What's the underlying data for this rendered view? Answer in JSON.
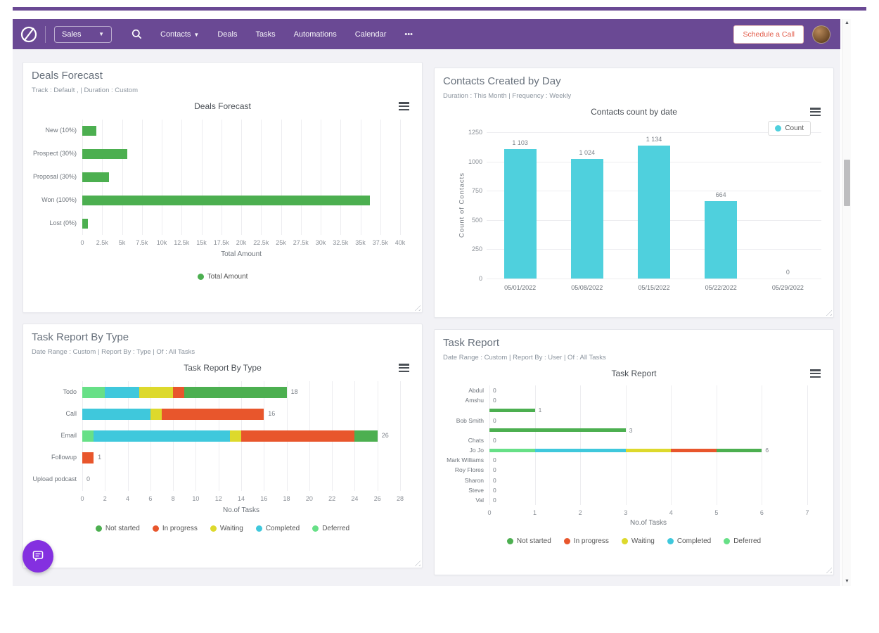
{
  "header": {
    "app_menu": "Sales",
    "nav_items": [
      "Contacts",
      "Deals",
      "Tasks",
      "Automations",
      "Calendar",
      "•••"
    ],
    "schedule_button": "Schedule a Call"
  },
  "colors": {
    "navbar": "#6a4994",
    "accent_button_text": "#e25c4a",
    "chat_fab": "#8430e0",
    "not_started": "#4caf50",
    "in_progress": "#e8562c",
    "waiting": "#ddd92c",
    "completed": "#3fc8dc",
    "deferred": "#67e087",
    "contacts_bar": "#4fd0dd"
  },
  "panels": [
    {
      "title": "Deals Forecast",
      "subtitle": "Track : Default , | Duration : Custom",
      "chart_title": "Deals Forecast"
    },
    {
      "title": "Contacts Created by Day",
      "subtitle": "Duration : This Month | Frequency : Weekly",
      "chart_title": "Contacts count by date"
    },
    {
      "title": "Task Report By Type",
      "subtitle": "Date Range : Custom | Report By : Type | Of : All Tasks",
      "chart_title": "Task Report By Type"
    },
    {
      "title": "Task Report",
      "subtitle": "Date Range : Custom | Report By : User | Of : All Tasks",
      "chart_title": "Task Report"
    }
  ],
  "chart_data": [
    {
      "type": "bar",
      "orientation": "horizontal",
      "title": "Deals Forecast",
      "categories": [
        "New (10%)",
        "Prospect (30%)",
        "Proposal (30%)",
        "Won (100%)",
        "Lost (0%)"
      ],
      "values": [
        1800,
        5700,
        3400,
        36200,
        700
      ],
      "xlabel": "Total Amount",
      "xlim": [
        0,
        40000
      ],
      "xtick_step": 2500,
      "xtick_labels": [
        "0",
        "2.5k",
        "5k",
        "7.5k",
        "10k",
        "12.5k",
        "15k",
        "17.5k",
        "20k",
        "22.5k",
        "25k",
        "27.5k",
        "30k",
        "32.5k",
        "35k",
        "37.5k",
        "40k"
      ],
      "bar_color": "#4caf50",
      "legend": [
        {
          "label": "Total Amount",
          "color": "#4caf50"
        }
      ]
    },
    {
      "type": "bar",
      "orientation": "vertical",
      "title": "Contacts count by date",
      "categories": [
        "05/01/2022",
        "05/08/2022",
        "05/15/2022",
        "05/22/2022",
        "05/29/2022"
      ],
      "values": [
        1103,
        1024,
        1134,
        664,
        0
      ],
      "value_labels": [
        "1 103",
        "1 024",
        "1 134",
        "664",
        "0"
      ],
      "ylabel": "Count of Contacts",
      "ylim": [
        0,
        1250
      ],
      "ytick_step": 250,
      "bar_color": "#4fd0dd",
      "legend": [
        {
          "label": "Count",
          "color": "#4fd0dd"
        }
      ]
    },
    {
      "type": "bar",
      "orientation": "horizontal",
      "stacked": true,
      "title": "Task Report By Type",
      "categories": [
        "Todo",
        "Call",
        "Email",
        "Followup",
        "Upload podcast"
      ],
      "series": [
        {
          "name": "Deferred",
          "color": "#67e087",
          "values": [
            2,
            0,
            1,
            0,
            0
          ]
        },
        {
          "name": "Completed",
          "color": "#3fc8dc",
          "values": [
            3,
            6,
            12,
            0,
            0
          ]
        },
        {
          "name": "Waiting",
          "color": "#ddd92c",
          "values": [
            3,
            1,
            1,
            0,
            0
          ]
        },
        {
          "name": "In progress",
          "color": "#e8562c",
          "values": [
            1,
            9,
            10,
            1,
            0
          ]
        },
        {
          "name": "Not started",
          "color": "#4caf50",
          "values": [
            9,
            0,
            2,
            0,
            0
          ]
        }
      ],
      "totals": [
        "18",
        "16",
        "26",
        "1",
        "0"
      ],
      "xlabel": "No.of Tasks",
      "xlim": [
        0,
        28
      ],
      "xtick_step": 2,
      "legend": [
        {
          "label": "Not started",
          "color": "#4caf50"
        },
        {
          "label": "In progress",
          "color": "#e8562c"
        },
        {
          "label": "Waiting",
          "color": "#ddd92c"
        },
        {
          "label": "Completed",
          "color": "#3fc8dc"
        },
        {
          "label": "Deferred",
          "color": "#67e087"
        }
      ]
    },
    {
      "type": "bar",
      "orientation": "horizontal",
      "stacked": true,
      "title": "Task Report",
      "xlabel": "No.of Tasks",
      "xlim": [
        0,
        7
      ],
      "xtick_step": 1,
      "rows": [
        {
          "label": "Abdul",
          "value_label": "0",
          "segments": []
        },
        {
          "label": "Amshu",
          "value_label": "0",
          "segments": []
        },
        {
          "label": "",
          "value_label": "1",
          "segments": [
            {
              "name": "Not started",
              "color": "#4caf50",
              "value": 1
            }
          ]
        },
        {
          "label": "Bob Smith",
          "value_label": "0",
          "segments": []
        },
        {
          "label": "",
          "value_label": "3",
          "segments": [
            {
              "name": "Not started",
              "color": "#4caf50",
              "value": 3
            }
          ]
        },
        {
          "label": "Chats",
          "value_label": "0",
          "segments": []
        },
        {
          "label": "Jo Jo",
          "value_label": "6",
          "segments": [
            {
              "name": "Deferred",
              "color": "#67e087",
              "value": 1
            },
            {
              "name": "Completed",
              "color": "#3fc8dc",
              "value": 2
            },
            {
              "name": "Waiting",
              "color": "#ddd92c",
              "value": 1
            },
            {
              "name": "In progress",
              "color": "#e8562c",
              "value": 1
            },
            {
              "name": "Not started",
              "color": "#4caf50",
              "value": 1
            }
          ]
        },
        {
          "label": "Mark Williams",
          "value_label": "0",
          "segments": []
        },
        {
          "label": "Roy Flores",
          "value_label": "0",
          "segments": []
        },
        {
          "label": "Sharon",
          "value_label": "0",
          "segments": []
        },
        {
          "label": "Steve",
          "value_label": "0",
          "segments": []
        },
        {
          "label": "Val",
          "value_label": "0",
          "segments": []
        }
      ],
      "legend": [
        {
          "label": "Not started",
          "color": "#4caf50"
        },
        {
          "label": "In progress",
          "color": "#e8562c"
        },
        {
          "label": "Waiting",
          "color": "#ddd92c"
        },
        {
          "label": "Completed",
          "color": "#3fc8dc"
        },
        {
          "label": "Deferred",
          "color": "#67e087"
        }
      ]
    }
  ]
}
